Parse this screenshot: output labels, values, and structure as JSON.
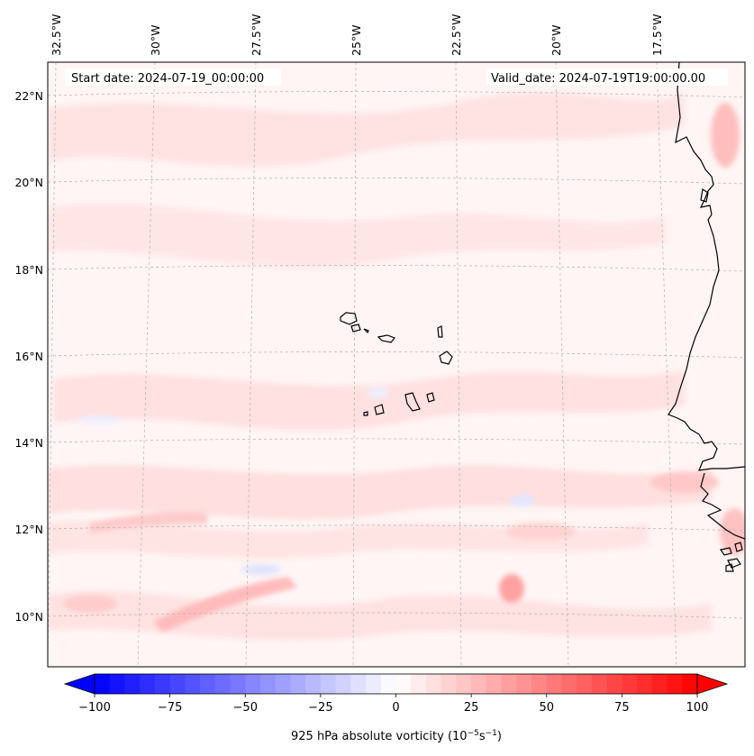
{
  "map": {
    "start_date": "Start date: 2024-07-19_00:00:00",
    "valid_date": "Valid_date: 2024-07-19T19:00:00.00",
    "lon_labels": [
      "32.5°W",
      "30°W",
      "27.5°W",
      "25°W",
      "22.5°W",
      "20°W",
      "17.5°W"
    ],
    "lat_labels": [
      "22°N",
      "20°N",
      "18°N",
      "16°N",
      "14°N",
      "12°N",
      "10°N"
    ],
    "gridlines": true,
    "colors": {
      "coastline": "#000000",
      "grid": "#b0b0b0"
    }
  },
  "colorbar": {
    "ticks": [
      "−100",
      "−75",
      "−50",
      "−25",
      "0",
      "25",
      "50",
      "75",
      "100"
    ],
    "label_main": "925 hPa absolute vorticity (10",
    "label_sup1": "−5",
    "label_mid": "s",
    "label_sup2": "−1",
    "label_end": ")",
    "colormap": "bwr",
    "range": [
      -100,
      100
    ]
  }
}
